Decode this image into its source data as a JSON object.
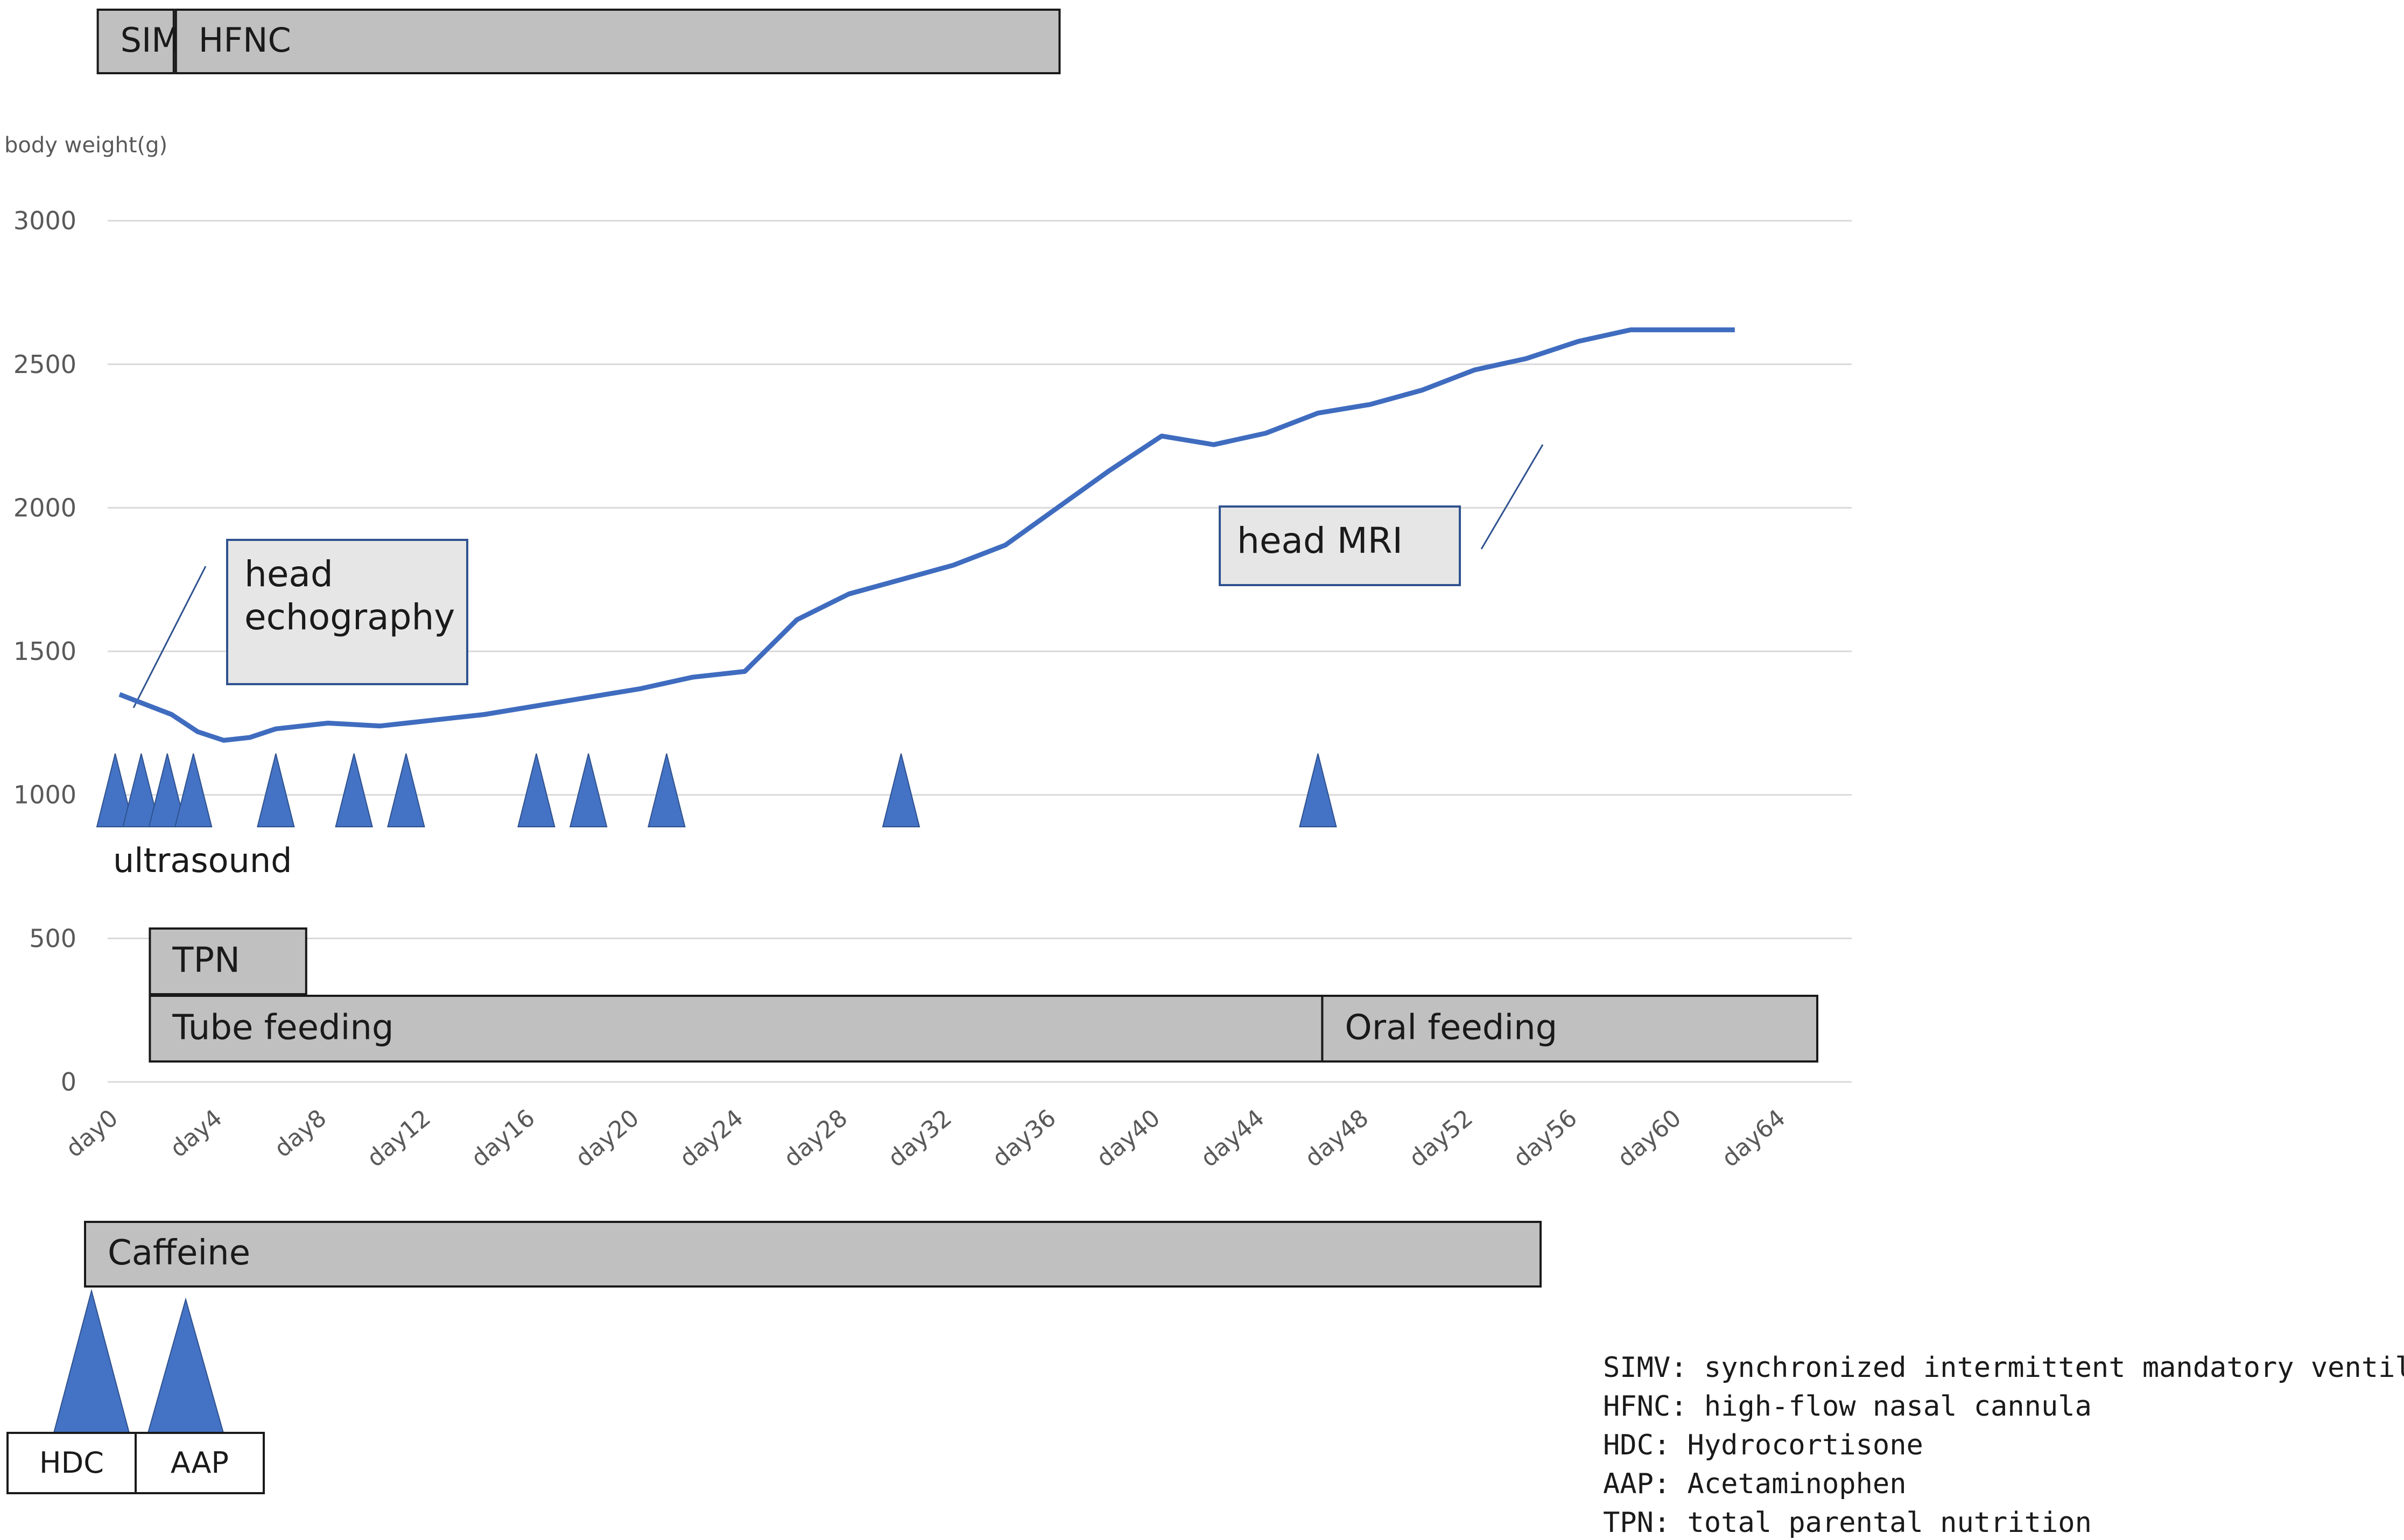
{
  "chart_data": {
    "type": "line",
    "ylabel": "body weight(g)",
    "ylim": [
      0,
      3000
    ],
    "yticks": [
      0,
      500,
      1000,
      1500,
      2000,
      2500,
      3000
    ],
    "xlim": [
      0,
      66
    ],
    "xtick_labels": [
      "day0",
      "day4",
      "day8",
      "day12",
      "day16",
      "day20",
      "day24",
      "day28",
      "day32",
      "day36",
      "day40",
      "day44",
      "day48",
      "day52",
      "day56",
      "day60",
      "day64"
    ],
    "grid": true,
    "series": [
      {
        "x": [
          0,
          2,
          3,
          4,
          5,
          6,
          8,
          10,
          12,
          14,
          16,
          18,
          20,
          22,
          24,
          26,
          28,
          30,
          32,
          34,
          36,
          38,
          40,
          42,
          44,
          46,
          48,
          50,
          52,
          54,
          56,
          58,
          60,
          62
        ],
        "values": [
          1350,
          1280,
          1220,
          1190,
          1200,
          1230,
          1250,
          1240,
          1260,
          1280,
          1310,
          1340,
          1370,
          1410,
          1430,
          1610,
          1700,
          1750,
          1800,
          1870,
          2000,
          2130,
          2250,
          2220,
          2260,
          2330,
          2360,
          2410,
          2480,
          2520,
          2580,
          2620,
          2620,
          2620
        ],
        "color": "#3f6cbf"
      }
    ],
    "ultrasound_days": [
      0,
      1,
      2,
      3,
      6,
      9,
      11,
      16,
      18,
      21,
      30,
      46
    ],
    "ultrasound_label": "ultrasound",
    "callouts": [
      {
        "label": "head\nechography"
      },
      {
        "label": "head MRI"
      }
    ],
    "respiratory": [
      {
        "label": "SIMV",
        "start": -1,
        "end": 2
      },
      {
        "label": "HFNC",
        "start": 2,
        "end": 36
      }
    ],
    "nutrition": [
      {
        "label": "TPN",
        "start": 1,
        "end": 7
      },
      {
        "label": "Tube feeding",
        "start": 1,
        "end": 46
      },
      {
        "label": "Oral feeding",
        "start": 46,
        "end": 65
      }
    ],
    "caffeine": {
      "label": "Caffeine",
      "start": -1,
      "end": 55
    },
    "drugs": [
      {
        "label": "HDC"
      },
      {
        "label": "AAP"
      }
    ],
    "legend": [
      "SIMV: synchronized intermittent mandatory ventilation",
      "HFNC: high-flow nasal cannula",
      "HDC: Hydrocortisone",
      "AAP: Acetaminophen",
      "TPN: total parental nutrition"
    ],
    "colors": {
      "line": "#3f6cbf",
      "triangle": "#4472c4",
      "box_fill": "#c0c0c0",
      "callout_fill": "#e7e6e6",
      "callout_border": "#2f528f",
      "grid": "#d9d9d9"
    }
  }
}
